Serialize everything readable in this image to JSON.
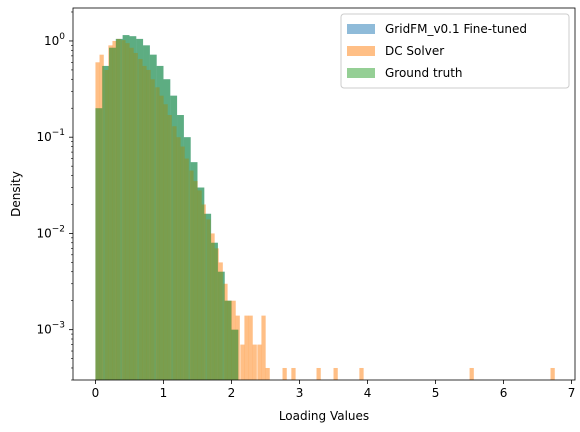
{
  "chart_data": {
    "type": "histogram",
    "title": "",
    "xlabel": "Loading Values",
    "ylabel": "Density",
    "xlim": [
      -0.33,
      7.05
    ],
    "ylim": [
      0.0003,
      2.2
    ],
    "yscale": "log",
    "x_ticks": [
      0,
      1,
      2,
      3,
      4,
      5,
      6,
      7
    ],
    "y_ticks": [
      {
        "value": 1,
        "label": "10^0"
      },
      {
        "value": 0.1,
        "label": "10^-1"
      },
      {
        "value": 0.01,
        "label": "10^-2"
      },
      {
        "value": 0.001,
        "label": "10^-3"
      }
    ],
    "legend_position": "top-right",
    "grid": false,
    "series": [
      {
        "name": "GridFM_v0.1 Fine-tuned",
        "color": "#1f77b4",
        "alpha": 0.5,
        "x": [
          0.0,
          0.1,
          0.2,
          0.3,
          0.4,
          0.5,
          0.6,
          0.7,
          0.8,
          0.9,
          1.0,
          1.1,
          1.2,
          1.3,
          1.4,
          1.5,
          1.6,
          1.7,
          1.8,
          1.9,
          2.0
        ],
        "y": [
          0.2,
          0.55,
          0.85,
          1.05,
          1.15,
          1.12,
          1.05,
          0.9,
          0.72,
          0.55,
          0.4,
          0.27,
          0.17,
          0.1,
          0.055,
          0.03,
          0.016,
          0.008,
          0.004,
          0.002,
          0.001
        ]
      },
      {
        "name": "DC Solver",
        "color": "#ff7f0e",
        "alpha": 0.5,
        "bin_width": 0.0625,
        "x": [
          0.0,
          0.06,
          0.13,
          0.19,
          0.25,
          0.31,
          0.38,
          0.44,
          0.5,
          0.56,
          0.63,
          0.69,
          0.75,
          0.81,
          0.88,
          0.94,
          1.0,
          1.06,
          1.13,
          1.19,
          1.25,
          1.31,
          1.38,
          1.44,
          1.5,
          1.56,
          1.63,
          1.69,
          1.75,
          1.81,
          1.88,
          1.94,
          2.0,
          2.06,
          2.13,
          2.19,
          2.25,
          2.31,
          2.38,
          2.44,
          2.5,
          2.75,
          2.88,
          3.25,
          3.5,
          3.88,
          5.5,
          6.69
        ],
        "y": [
          0.6,
          0.72,
          0.5,
          0.9,
          1.0,
          1.05,
          1.02,
          0.95,
          0.85,
          0.75,
          0.65,
          0.55,
          0.5,
          0.4,
          0.33,
          0.27,
          0.22,
          0.17,
          0.13,
          0.1,
          0.08,
          0.06,
          0.045,
          0.035,
          0.028,
          0.02,
          0.014,
          0.01,
          0.007,
          0.005,
          0.003,
          0.002,
          0.002,
          0.0014,
          0.0007,
          0.0014,
          0.0014,
          0.0007,
          0.0007,
          0.0014,
          0.0004,
          0.0004,
          0.0004,
          0.0004,
          0.0004,
          0.0004,
          0.0004,
          0.0004
        ]
      },
      {
        "name": "Ground truth",
        "color": "#2ca02c",
        "alpha": 0.5,
        "x": [
          0.0,
          0.1,
          0.2,
          0.3,
          0.4,
          0.5,
          0.6,
          0.7,
          0.8,
          0.9,
          1.0,
          1.1,
          1.2,
          1.3,
          1.4,
          1.5,
          1.6,
          1.7,
          1.8,
          1.9,
          2.0
        ],
        "y": [
          0.2,
          0.55,
          0.85,
          1.05,
          1.15,
          1.12,
          1.05,
          0.9,
          0.72,
          0.55,
          0.4,
          0.27,
          0.17,
          0.1,
          0.055,
          0.03,
          0.016,
          0.008,
          0.004,
          0.002,
          0.001
        ]
      }
    ]
  }
}
